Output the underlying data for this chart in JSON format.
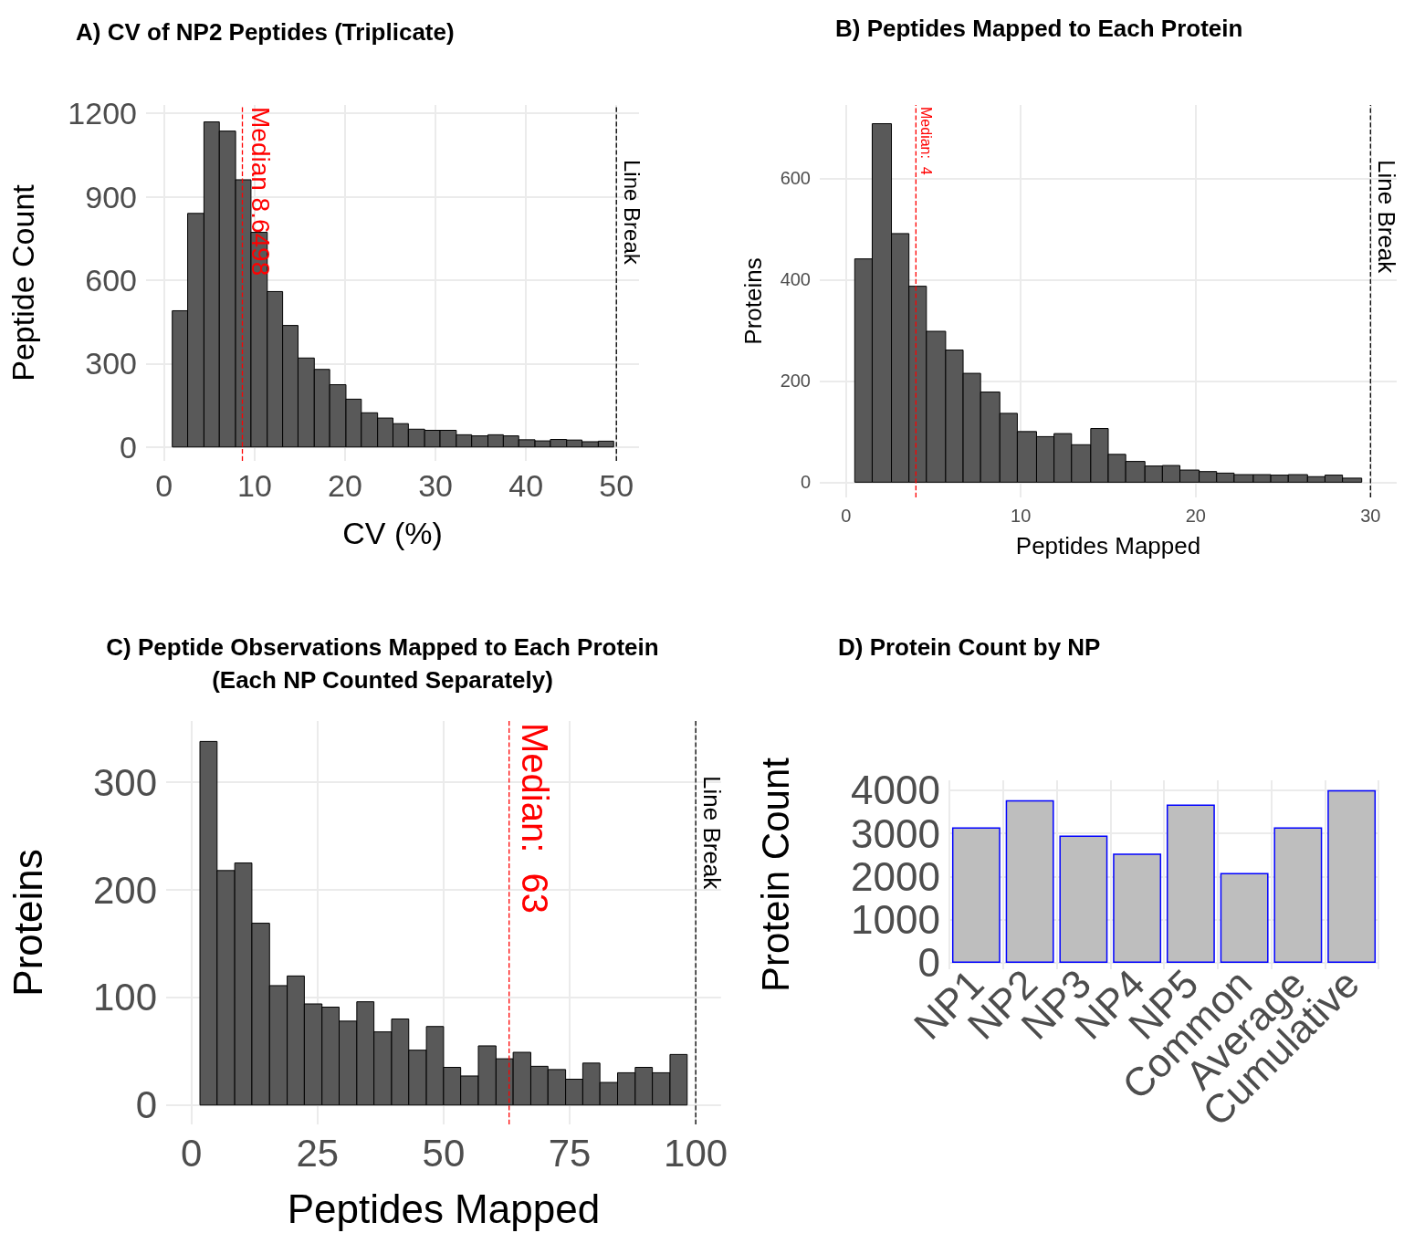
{
  "chart_data": [
    {
      "type": "histogram",
      "title": "A) CV of NP2 Peptides (Triplicate)",
      "xlabel": "CV (%)",
      "ylabel": "Peptide Count",
      "color": "#595959",
      "bins": [
        0.9,
        2.6,
        4.4,
        6.1,
        7.9,
        9.6,
        11.4,
        13.1,
        14.8,
        16.6,
        18.3,
        20.1,
        21.8,
        23.6,
        25.3,
        27.0,
        28.8,
        30.5,
        32.3,
        34.0,
        35.8,
        37.5,
        39.2,
        41.0,
        42.7,
        44.5,
        46.2,
        48.0,
        49.7
      ],
      "values": [
        490,
        840,
        1169,
        1136,
        961,
        772,
        559,
        437,
        320,
        279,
        224,
        172,
        123,
        104,
        84,
        64,
        60,
        60,
        44,
        40,
        44,
        40,
        26,
        22,
        27,
        25,
        19,
        21
      ],
      "xlim": [
        -2,
        52.5
      ],
      "ylim": [
        -50,
        1230
      ],
      "xticks": [
        0,
        10,
        20,
        30,
        40,
        50
      ],
      "yticks": [
        0,
        300,
        600,
        900,
        1200
      ],
      "grid": true,
      "ref_lines": [
        {
          "axis": "x",
          "value": 8.65,
          "label": "Median 8.6498",
          "color": "#ff0000",
          "line_style": "dashed"
        },
        {
          "axis": "x",
          "value": 50,
          "label": "Line Break",
          "color": "#000000",
          "line_style": "dashed"
        }
      ]
    },
    {
      "type": "histogram",
      "title": "B) Peptides Mapped to Each Protein",
      "xlabel": "Peptides Mapped",
      "ylabel": "Proteins",
      "color": "#595959",
      "bins": [
        0.5,
        1.5,
        2.6,
        3.6,
        4.6,
        5.7,
        6.7,
        7.7,
        8.8,
        9.8,
        10.9,
        11.9,
        12.9,
        14.0,
        15.0,
        16.0,
        17.1,
        18.1,
        19.1,
        20.2,
        21.2,
        22.2,
        23.3,
        24.3,
        25.3,
        26.4,
        27.4,
        28.4,
        29.5
      ],
      "values": [
        441,
        708,
        491,
        387,
        298,
        261,
        215,
        178,
        136,
        100,
        90,
        96,
        74,
        106,
        55,
        41,
        32,
        33,
        24,
        21,
        18,
        15,
        15,
        14,
        15,
        11,
        14,
        8
      ],
      "xlim": [
        -1.5,
        31.5
      ],
      "ylim": [
        -30,
        745
      ],
      "xticks": [
        0,
        10,
        20,
        30
      ],
      "yticks": [
        0,
        200,
        400,
        600
      ],
      "grid": true,
      "ref_lines": [
        {
          "axis": "x",
          "value": 4,
          "label": "Median:  4",
          "color": "#ff0000",
          "line_style": "dashed"
        },
        {
          "axis": "x",
          "value": 30,
          "label": "Line Break",
          "color": "#000000",
          "line_style": "dashed"
        }
      ]
    },
    {
      "type": "histogram",
      "title": "C) Peptide Observations Mapped to Each Protein\n(Each NP Counted Separately)",
      "xlabel": "Peptides Mapped",
      "ylabel": "Proteins",
      "color": "#595959",
      "bins": [
        1.7,
        5.1,
        8.6,
        12.0,
        15.5,
        19.0,
        22.4,
        25.9,
        29.3,
        32.8,
        36.2,
        39.7,
        43.1,
        46.6,
        50.0,
        53.4,
        56.9,
        60.4,
        63.8,
        67.3,
        70.7,
        74.2,
        77.6,
        81.0,
        84.5,
        88.0,
        91.4,
        94.9,
        98.3
      ],
      "values": [
        338,
        218,
        225,
        169,
        111,
        120,
        94,
        91,
        78,
        96,
        68,
        80,
        51,
        73,
        35,
        27,
        55,
        43,
        49,
        36,
        33,
        24,
        39,
        21,
        30,
        35,
        30,
        47
      ],
      "xlim": [
        -5,
        105
      ],
      "ylim": [
        -18,
        357
      ],
      "xticks": [
        0,
        25,
        50,
        75,
        100
      ],
      "yticks": [
        0,
        100,
        200,
        300
      ],
      "grid": true,
      "ref_lines": [
        {
          "axis": "x",
          "value": 63,
          "label": "Median:  63",
          "color": "#ff0000",
          "line_style": "dashed"
        },
        {
          "axis": "x",
          "value": 100,
          "label": "Line Break",
          "color": "#000000",
          "line_style": "dashed"
        }
      ]
    },
    {
      "type": "bar",
      "title": "D) Protein Count by NP",
      "ylabel": "Protein Count",
      "color": "#bebebe",
      "categories": [
        "NP1",
        "NP2",
        "NP3",
        "NP4",
        "NP5",
        "Common",
        "Average",
        "Cumulative"
      ],
      "values": [
        3140,
        3770,
        2950,
        2530,
        3670,
        2080,
        3140,
        4000
      ],
      "ylim": [
        -150,
        4230
      ],
      "yticks": [
        0,
        1000,
        2000,
        3000,
        4000
      ],
      "grid": true
    }
  ]
}
